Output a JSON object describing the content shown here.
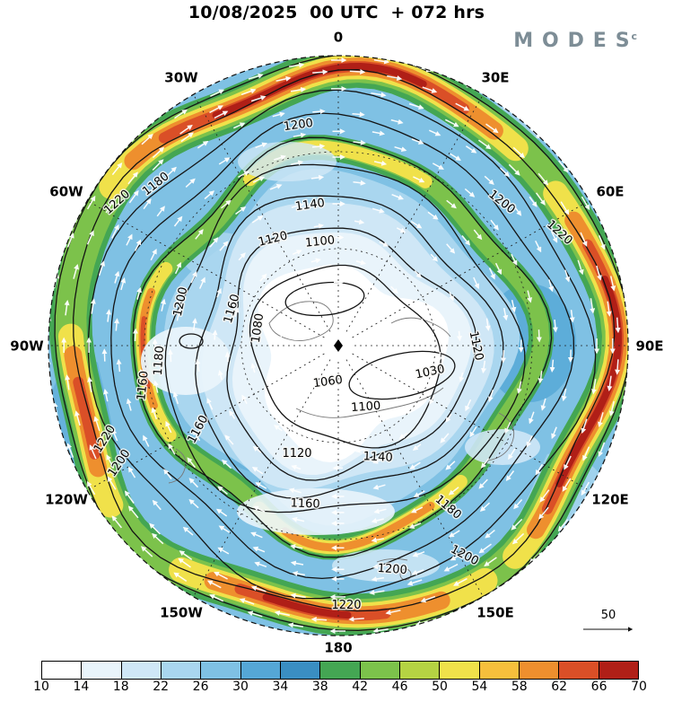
{
  "header": {
    "title": "10/08/2025  00 UTC  + 072 hrs",
    "brand": "MODES",
    "brand_mark": "c"
  },
  "map": {
    "reference_vector_label": "50",
    "contour_labels": [
      "1200",
      "1180",
      "1220",
      "1140",
      "1120",
      "1100",
      "1200",
      "1220",
      "1200",
      "1160",
      "1080",
      "1180",
      "1160",
      "1030",
      "1060",
      "1120",
      "1100",
      "1140",
      "1120",
      "1160",
      "1180",
      "1220",
      "1200",
      "1200",
      "1220",
      "1160",
      "1200"
    ]
  },
  "chart_data": {
    "type": "heatmap",
    "title": "10/08/2025 00 UTC + 072 hrs",
    "longitude_labels": [
      "0",
      "30E",
      "60E",
      "90E",
      "120E",
      "150E",
      "180",
      "150W",
      "120W",
      "90W",
      "60W",
      "30W"
    ],
    "contour_levels": [
      1030,
      1060,
      1080,
      1100,
      1120,
      1140,
      1160,
      1180,
      1200,
      1220
    ],
    "colorbar": {
      "ticks": [
        10,
        14,
        18,
        22,
        26,
        30,
        34,
        38,
        42,
        46,
        50,
        54,
        58,
        62,
        66,
        70
      ],
      "colors": [
        "#ffffff",
        "#e9f4fb",
        "#cfe7f6",
        "#a9d6ef",
        "#7fc1e4",
        "#55a7d6",
        "#3a8ec2",
        "#44a653",
        "#7cc24b",
        "#b5d343",
        "#f0e14a",
        "#f6bf3c",
        "#ee8f2e",
        "#da4f27",
        "#b01f17"
      ]
    },
    "reference_vector": 50,
    "legend_position": "bottom"
  }
}
